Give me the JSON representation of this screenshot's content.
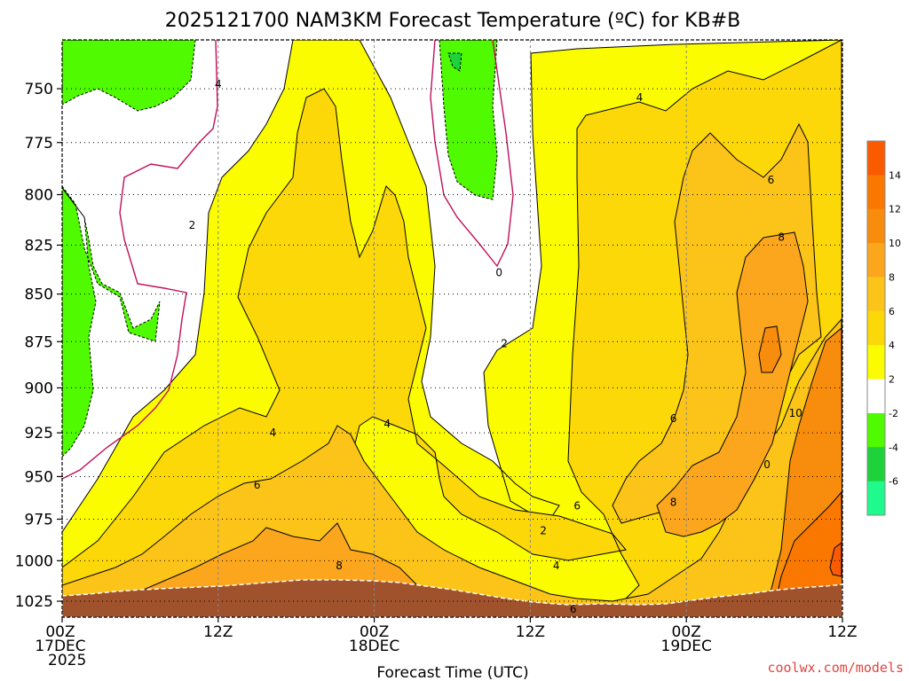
{
  "chart_data": {
    "type": "heatmap",
    "title": "2025121700 NAM3KM Forecast Temperature (ºC) for KB#B",
    "xlabel": "Forecast Time (UTC)",
    "ylabel": "",
    "x_ticks": [
      {
        "hour": 0,
        "lines": [
          "00Z",
          "17DEC",
          "2025"
        ]
      },
      {
        "hour": 12,
        "lines": [
          "12Z"
        ]
      },
      {
        "hour": 24,
        "lines": [
          "00Z",
          "18DEC"
        ]
      },
      {
        "hour": 36,
        "lines": [
          "12Z"
        ]
      },
      {
        "hour": 48,
        "lines": [
          "00Z",
          "19DEC"
        ]
      },
      {
        "hour": 60,
        "lines": [
          "12Z"
        ]
      }
    ],
    "xlim": [
      0,
      60
    ],
    "y_ticks": [
      750,
      775,
      800,
      825,
      850,
      875,
      900,
      925,
      950,
      975,
      1000,
      1025
    ],
    "ylim": [
      1035,
      728
    ],
    "y_scale": "log",
    "colorbar": {
      "ticks": [
        "14",
        "12",
        "10",
        "8",
        "6",
        "4",
        "2",
        "-2",
        "-4",
        "-6"
      ],
      "levels": [
        {
          "from": 14,
          "to": 16,
          "color": "#fa5a00"
        },
        {
          "from": 12,
          "to": 14,
          "color": "#fa7800"
        },
        {
          "from": 10,
          "to": 12,
          "color": "#f88c0c"
        },
        {
          "from": 8,
          "to": 10,
          "color": "#fca61e"
        },
        {
          "from": 6,
          "to": 8,
          "color": "#fcc418"
        },
        {
          "from": 4,
          "to": 6,
          "color": "#fcd808"
        },
        {
          "from": 2,
          "to": 4,
          "color": "#fcfc00"
        },
        {
          "from": -2,
          "to": 2,
          "color": "#ffffff"
        },
        {
          "from": -4,
          "to": -2,
          "color": "#50fa00"
        },
        {
          "from": -6,
          "to": -4,
          "color": "#1ed23c"
        },
        {
          "from": -8,
          "to": -6,
          "color": "#1efa8c"
        }
      ]
    },
    "contour_labels": [
      {
        "text": "4",
        "hour": 12.0,
        "p": 748
      },
      {
        "text": "2",
        "hour": 10.0,
        "p": 815
      },
      {
        "text": "0",
        "hour": 33.6,
        "p": 839
      },
      {
        "text": "2",
        "hour": 34.0,
        "p": 876
      },
      {
        "text": "4",
        "hour": 16.2,
        "p": 925
      },
      {
        "text": "4",
        "hour": 25.0,
        "p": 920
      },
      {
        "text": "6",
        "hour": 15.0,
        "p": 955
      },
      {
        "text": "8",
        "hour": 21.3,
        "p": 1003
      },
      {
        "text": "2",
        "hour": 37.0,
        "p": 982
      },
      {
        "text": "4",
        "hour": 38.0,
        "p": 1003
      },
      {
        "text": "6",
        "hour": 39.3,
        "p": 1030
      },
      {
        "text": "6",
        "hour": 39.6,
        "p": 967
      },
      {
        "text": "4",
        "hour": 44.4,
        "p": 754
      },
      {
        "text": "6",
        "hour": 54.5,
        "p": 793
      },
      {
        "text": "8",
        "hour": 55.3,
        "p": 821
      },
      {
        "text": "6",
        "hour": 47.0,
        "p": 917
      },
      {
        "text": "8",
        "hour": 47.0,
        "p": 965
      },
      {
        "text": "10",
        "hour": 56.4,
        "p": 914
      },
      {
        "text": "0",
        "hour": 54.2,
        "p": 943
      }
    ],
    "colors": {
      "terrain": "#a0522d",
      "contour_line": "#000000",
      "zero_isotherm": "#c0105a",
      "gridline": "#888888"
    }
  },
  "credit": "coolwx.com/models"
}
